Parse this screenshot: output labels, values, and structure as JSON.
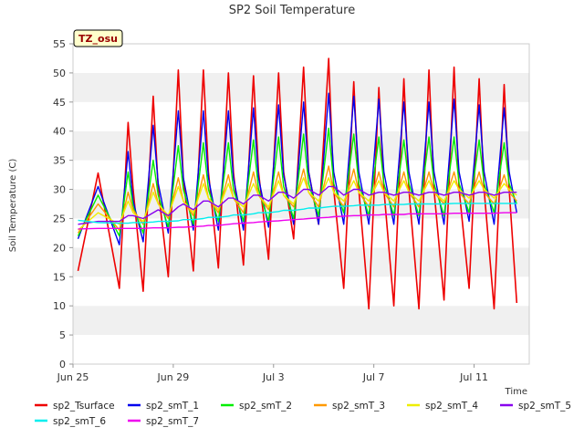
{
  "chart_data": {
    "type": "line",
    "title": "SP2 Soil Temperature",
    "xlabel": "Time",
    "ylabel": "Soil Temperature (C)",
    "badge": "TZ_osu",
    "ylim": [
      0,
      55
    ],
    "yticks": [
      0,
      5,
      10,
      15,
      20,
      25,
      30,
      35,
      40,
      45,
      50,
      55
    ],
    "xlim": [
      0,
      18.2
    ],
    "x_unit": "days since Jun 25",
    "xticks": [
      {
        "value": 0,
        "label": "Jun 25"
      },
      {
        "value": 4,
        "label": "Jun 29"
      },
      {
        "value": 8,
        "label": "Jul 3"
      },
      {
        "value": 12,
        "label": "Jul 7"
      },
      {
        "value": 16,
        "label": "Jul 11"
      }
    ],
    "grid": "horizontal bands",
    "legend_position": "bottom",
    "x": [
      0.2,
      1.0,
      1.85,
      2.2,
      2.4,
      2.8,
      3.2,
      3.4,
      3.8,
      4.2,
      4.4,
      4.8,
      5.2,
      5.4,
      5.8,
      6.2,
      6.4,
      6.8,
      7.2,
      7.4,
      7.8,
      8.2,
      8.4,
      8.8,
      9.2,
      9.4,
      9.8,
      10.2,
      10.4,
      10.8,
      11.2,
      11.4,
      11.8,
      12.2,
      12.4,
      12.8,
      13.2,
      13.4,
      13.8,
      14.2,
      14.4,
      14.8,
      15.2,
      15.4,
      15.8,
      16.2,
      16.4,
      16.8,
      17.2,
      17.4,
      17.7
    ],
    "series": [
      {
        "name": "sp2_Tsurface",
        "color": "#ee0000",
        "values": [
          16,
          32.8,
          13,
          41.5,
          30,
          12.5,
          46,
          30,
          15,
          50.5,
          32,
          16,
          50.5,
          33,
          16.5,
          50,
          33,
          17,
          49.5,
          33,
          18,
          50,
          33,
          21.5,
          51,
          33,
          24,
          52.5,
          30,
          13,
          48.5,
          30,
          9.5,
          47.5,
          30,
          10,
          49,
          30,
          9.5,
          50.5,
          30,
          11,
          51,
          30,
          13,
          49,
          30,
          9.5,
          48,
          30,
          10.5
        ]
      },
      {
        "name": "sp2_smT_1",
        "color": "#0000ee",
        "values": [
          21.5,
          30.5,
          20.5,
          36.5,
          28,
          21,
          41,
          31,
          22.5,
          43.5,
          32,
          23,
          43.5,
          32,
          23,
          43.5,
          32,
          23,
          44,
          32,
          23.5,
          44.5,
          32.5,
          24,
          45,
          33,
          24,
          46.5,
          33,
          24,
          46,
          33,
          24,
          45.5,
          33,
          24,
          45,
          33,
          24,
          45,
          33,
          24,
          45.5,
          33,
          24.5,
          44.5,
          33,
          24,
          44,
          33,
          26
        ]
      },
      {
        "name": "sp2_smT_2",
        "color": "#00ee00",
        "values": [
          22,
          29,
          22,
          33,
          27,
          22.5,
          35,
          29,
          23.5,
          37.5,
          30,
          24,
          38,
          30,
          24.5,
          38,
          30,
          24.5,
          38.5,
          30,
          24.5,
          39,
          30.5,
          25,
          39.5,
          31,
          25.5,
          40.5,
          31,
          26,
          39.5,
          31,
          25.5,
          39,
          31,
          25.5,
          38.5,
          31,
          25.5,
          39,
          31,
          25.5,
          39,
          31,
          26,
          38.5,
          31,
          26,
          38,
          31,
          27.5
        ]
      },
      {
        "name": "sp2_smT_3",
        "color": "#ff9900",
        "values": [
          22.5,
          27.5,
          23,
          29.5,
          26.5,
          24,
          31,
          27.5,
          25,
          32,
          28,
          25.5,
          32.5,
          28.5,
          26,
          32.5,
          28.5,
          26,
          33,
          29,
          26.5,
          33,
          29,
          27,
          33.5,
          29.5,
          27,
          34,
          29.5,
          27,
          33.5,
          29.5,
          27,
          33,
          29.5,
          27,
          33,
          29.5,
          27,
          33,
          29.5,
          27.5,
          33,
          29.5,
          27.5,
          33,
          29.5,
          27.5,
          32.5,
          29.5,
          28
        ]
      },
      {
        "name": "sp2_smT_4",
        "color": "#eeee00",
        "values": [
          23,
          26,
          24,
          28,
          26,
          24.5,
          29.5,
          27.5,
          25.5,
          30.5,
          28,
          26,
          31,
          28.5,
          26.5,
          31,
          28.5,
          27,
          31,
          29,
          27,
          31.5,
          29,
          27.5,
          32,
          29.5,
          28,
          32,
          29.5,
          28,
          31.5,
          29.5,
          28,
          31.5,
          29.5,
          28,
          31.5,
          29.5,
          28,
          31.5,
          29.5,
          28,
          31.5,
          30,
          28.5,
          31.5,
          30,
          28.5,
          31,
          30,
          29
        ]
      },
      {
        "name": "sp2_smT_5",
        "color": "#8800ee",
        "values": [
          24,
          24.5,
          24.5,
          25.5,
          25.5,
          25,
          26,
          26.5,
          25.5,
          27,
          27.5,
          26.5,
          28,
          28,
          27,
          28.5,
          28.5,
          27.5,
          29,
          29,
          28,
          29.5,
          29.5,
          28.5,
          30,
          30,
          29,
          30.5,
          30.5,
          29,
          30,
          30,
          29,
          29.5,
          29.5,
          29,
          29.5,
          29.5,
          29,
          29.5,
          29.5,
          29,
          29.5,
          29.5,
          29,
          29.5,
          29.5,
          29,
          29.5,
          29.5,
          29.5
        ]
      },
      {
        "name": "sp2_smT_6",
        "color": "#00eeee",
        "values": [
          24.7,
          24.3,
          24.2,
          24.2,
          24.3,
          24.3,
          24.4,
          24.5,
          24.5,
          24.6,
          24.8,
          24.8,
          25,
          25.2,
          25.2,
          25.4,
          25.6,
          25.6,
          25.8,
          26,
          26,
          26.2,
          26.4,
          26.4,
          26.6,
          26.8,
          26.8,
          27,
          27.1,
          27.1,
          27.2,
          27.3,
          27.3,
          27.3,
          27.4,
          27.4,
          27.4,
          27.5,
          27.5,
          27.5,
          27.5,
          27.5,
          27.6,
          27.6,
          27.6,
          27.6,
          27.6,
          27.6,
          27.6,
          27.6,
          27.6
        ]
      },
      {
        "name": "sp2_smT_7",
        "color": "#ee00ee",
        "values": [
          23.2,
          23.3,
          23.3,
          23.3,
          23.3,
          23.3,
          23.4,
          23.4,
          23.4,
          23.5,
          23.5,
          23.6,
          23.7,
          23.8,
          23.8,
          24,
          24.1,
          24.2,
          24.3,
          24.4,
          24.5,
          24.6,
          24.7,
          24.8,
          24.9,
          25,
          25.1,
          25.2,
          25.3,
          25.4,
          25.5,
          25.5,
          25.6,
          25.6,
          25.7,
          25.7,
          25.7,
          25.8,
          25.8,
          25.8,
          25.8,
          25.8,
          25.9,
          25.9,
          25.9,
          25.9,
          25.9,
          25.9,
          26,
          26,
          26
        ]
      }
    ]
  }
}
